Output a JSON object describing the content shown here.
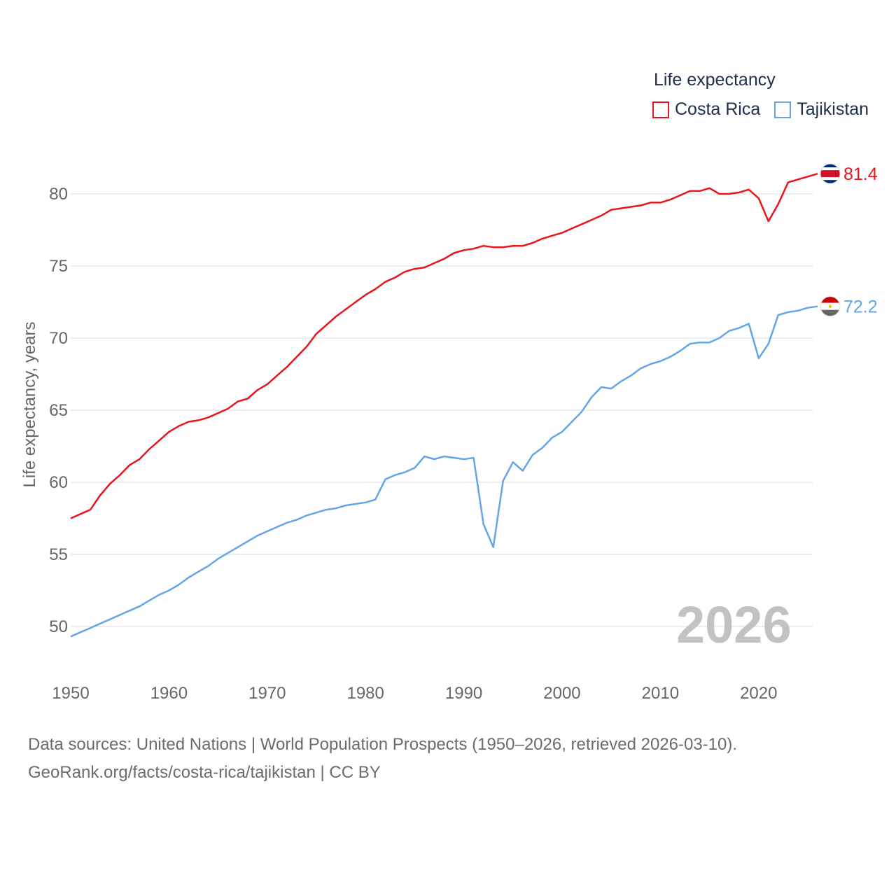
{
  "chart_data": {
    "type": "line",
    "title": "Life expectancy",
    "ylabel": "Life expectancy, years",
    "xlabel": "",
    "xlim": [
      1950,
      2026
    ],
    "ylim": [
      47,
      82.6
    ],
    "x_ticks": [
      1950,
      1960,
      1970,
      1980,
      1990,
      2000,
      2010,
      2020
    ],
    "y_ticks": [
      50,
      55,
      60,
      65,
      70,
      75,
      80
    ],
    "current_year": "2026",
    "series": [
      {
        "name": "Costa Rica",
        "color": "#e8151b",
        "end_label": "81.4",
        "flag_icon": "costa-rica-flag-icon",
        "x": [
          1950,
          1951,
          1952,
          1953,
          1954,
          1955,
          1956,
          1957,
          1958,
          1959,
          1960,
          1961,
          1962,
          1963,
          1964,
          1965,
          1966,
          1967,
          1968,
          1969,
          1970,
          1971,
          1972,
          1973,
          1974,
          1975,
          1976,
          1977,
          1978,
          1979,
          1980,
          1981,
          1982,
          1983,
          1984,
          1985,
          1986,
          1987,
          1988,
          1989,
          1990,
          1991,
          1992,
          1993,
          1994,
          1995,
          1996,
          1997,
          1998,
          1999,
          2000,
          2001,
          2002,
          2003,
          2004,
          2005,
          2006,
          2007,
          2008,
          2009,
          2010,
          2011,
          2012,
          2013,
          2014,
          2015,
          2016,
          2017,
          2018,
          2019,
          2020,
          2021,
          2022,
          2023,
          2024,
          2025,
          2026
        ],
        "values": [
          57.5,
          57.8,
          58.1,
          59.1,
          59.9,
          60.5,
          61.2,
          61.6,
          62.3,
          62.9,
          63.5,
          63.9,
          64.2,
          64.3,
          64.5,
          64.8,
          65.1,
          65.6,
          65.8,
          66.4,
          66.8,
          67.4,
          68.0,
          68.7,
          69.4,
          70.3,
          70.9,
          71.5,
          72.0,
          72.5,
          73.0,
          73.4,
          73.9,
          74.2,
          74.6,
          74.8,
          74.9,
          75.2,
          75.5,
          75.9,
          76.1,
          76.2,
          76.4,
          76.3,
          76.3,
          76.4,
          76.4,
          76.6,
          76.9,
          77.1,
          77.3,
          77.6,
          77.9,
          78.2,
          78.5,
          78.9,
          79.0,
          79.1,
          79.2,
          79.4,
          79.4,
          79.6,
          79.9,
          80.2,
          80.2,
          80.4,
          80.0,
          80.0,
          80.1,
          80.3,
          79.7,
          78.1,
          79.3,
          80.8,
          81.0,
          81.2,
          81.4
        ]
      },
      {
        "name": "Tajikistan",
        "color": "#63a5e6",
        "end_label": "72.2",
        "flag_icon": "tajikistan-flag-icon",
        "x": [
          1950,
          1951,
          1952,
          1953,
          1954,
          1955,
          1956,
          1957,
          1958,
          1959,
          1960,
          1961,
          1962,
          1963,
          1964,
          1965,
          1966,
          1967,
          1968,
          1969,
          1970,
          1971,
          1972,
          1973,
          1974,
          1975,
          1976,
          1977,
          1978,
          1979,
          1980,
          1981,
          1982,
          1983,
          1984,
          1985,
          1986,
          1987,
          1988,
          1989,
          1990,
          1991,
          1992,
          1993,
          1994,
          1995,
          1996,
          1997,
          1998,
          1999,
          2000,
          2001,
          2002,
          2003,
          2004,
          2005,
          2006,
          2007,
          2008,
          2009,
          2010,
          2011,
          2012,
          2013,
          2014,
          2015,
          2016,
          2017,
          2018,
          2019,
          2020,
          2021,
          2022,
          2023,
          2024,
          2025,
          2026
        ],
        "values": [
          49.3,
          49.6,
          49.9,
          50.2,
          50.5,
          50.8,
          51.1,
          51.4,
          51.8,
          52.2,
          52.5,
          52.9,
          53.4,
          53.8,
          54.2,
          54.7,
          55.1,
          55.5,
          55.9,
          56.3,
          56.6,
          56.9,
          57.2,
          57.4,
          57.7,
          57.9,
          58.1,
          58.2,
          58.4,
          58.5,
          58.6,
          58.8,
          60.2,
          60.5,
          60.7,
          61.0,
          61.8,
          61.6,
          61.8,
          61.7,
          61.6,
          61.7,
          57.1,
          55.5,
          60.1,
          61.4,
          60.8,
          61.9,
          62.4,
          63.1,
          63.5,
          64.2,
          64.9,
          65.9,
          66.6,
          66.5,
          67.0,
          67.4,
          67.9,
          68.2,
          68.4,
          68.7,
          69.1,
          69.6,
          69.7,
          69.7,
          70.0,
          70.5,
          70.7,
          71.0,
          68.6,
          69.6,
          71.6,
          71.8,
          71.9,
          72.1,
          72.2
        ]
      }
    ]
  },
  "legend": {
    "title": "Life expectancy",
    "items": [
      "Costa Rica",
      "Tajikistan"
    ]
  },
  "watermark_year": "2026",
  "footer": {
    "line1": "Data sources: United Nations | World Population Prospects (1950–2026, retrieved 2026-03-10).",
    "line2": "GeoRank.org/facts/costa-rica/tajikistan | CC BY"
  }
}
